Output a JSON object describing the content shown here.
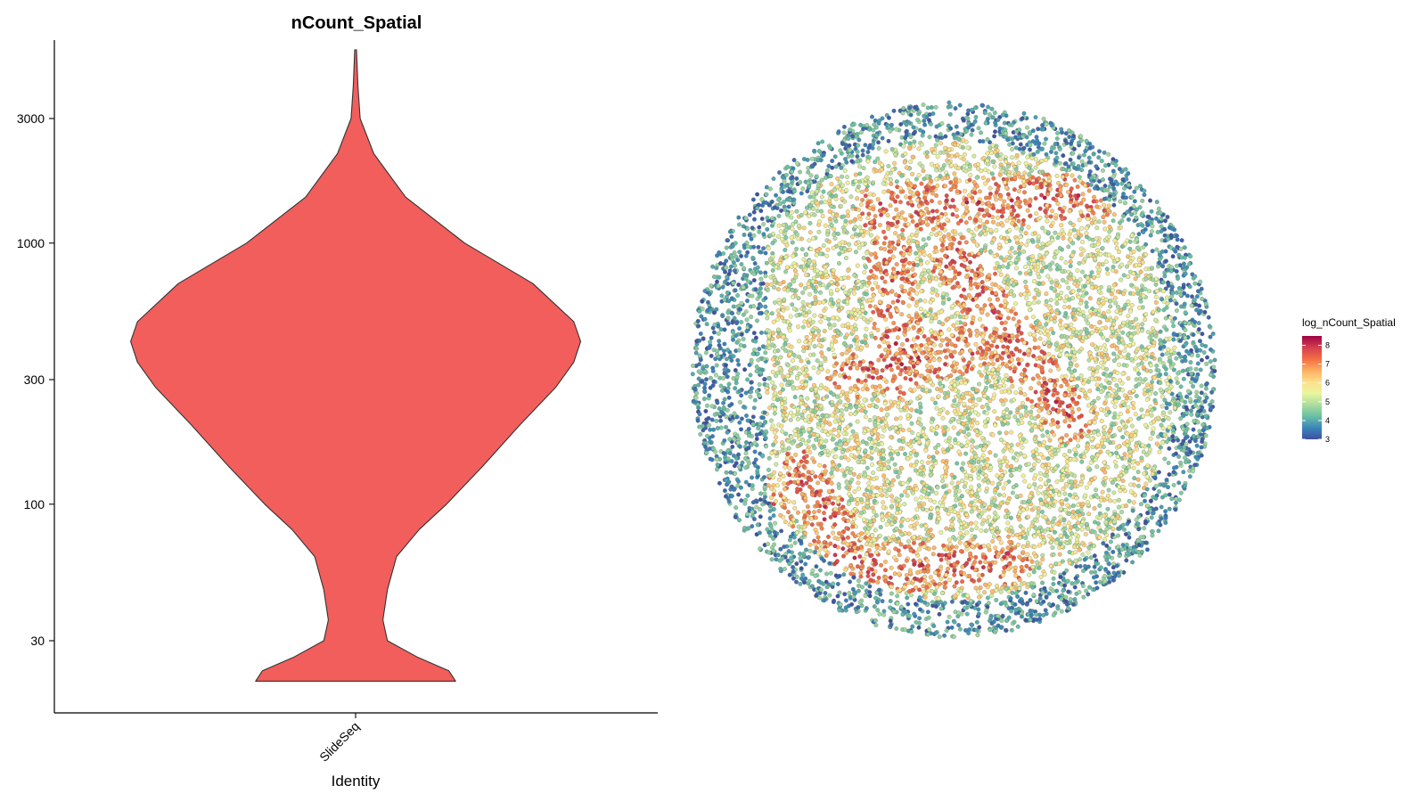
{
  "chart_data": [
    {
      "type": "violin",
      "title": "nCount_Spatial",
      "xlabel": "Identity",
      "ylabel": "",
      "y_scale": "log10",
      "categories": [
        "SlideSeq"
      ],
      "yticks": [
        30,
        100,
        300,
        1000,
        3000
      ],
      "ylim": [
        14,
        8000
      ],
      "fill_color": "#F15E5C",
      "series": [
        {
          "values": [
            "SlideSeq"
          ],
          "profile": [
            {
              "y": 21,
              "halfwidth": 0.44
            },
            {
              "y": 23,
              "halfwidth": 0.41
            },
            {
              "y": 26,
              "halfwidth": 0.27
            },
            {
              "y": 30,
              "halfwidth": 0.14
            },
            {
              "y": 36,
              "halfwidth": 0.12
            },
            {
              "y": 47,
              "halfwidth": 0.14
            },
            {
              "y": 63,
              "halfwidth": 0.18
            },
            {
              "y": 80,
              "halfwidth": 0.28
            },
            {
              "y": 100,
              "halfwidth": 0.4
            },
            {
              "y": 140,
              "halfwidth": 0.56
            },
            {
              "y": 200,
              "halfwidth": 0.72
            },
            {
              "y": 280,
              "halfwidth": 0.88
            },
            {
              "y": 350,
              "halfwidth": 0.96
            },
            {
              "y": 420,
              "halfwidth": 0.99
            },
            {
              "y": 500,
              "halfwidth": 0.96
            },
            {
              "y": 700,
              "halfwidth": 0.78
            },
            {
              "y": 1000,
              "halfwidth": 0.48
            },
            {
              "y": 1500,
              "halfwidth": 0.22
            },
            {
              "y": 2200,
              "halfwidth": 0.08
            },
            {
              "y": 3000,
              "halfwidth": 0.02
            },
            {
              "y": 4000,
              "halfwidth": 0.01
            },
            {
              "y": 5500,
              "halfwidth": 0.004
            }
          ]
        }
      ]
    },
    {
      "type": "scatter",
      "title": "",
      "xlabel": "",
      "ylabel": "",
      "colorbar": {
        "title": "log_nCount_Spatial",
        "range": [
          3,
          8.5
        ],
        "ticks": [
          3,
          4,
          5,
          6,
          7,
          8
        ],
        "colors": [
          "#3F4FA0",
          "#3A86BB",
          "#67C0A3",
          "#ADDC9F",
          "#E9F59E",
          "#FEE08B",
          "#FDAE61",
          "#F46D43",
          "#D53E4F",
          "#9E0142"
        ]
      },
      "layout_regions": [
        {
          "name": "outer-rim-low",
          "value_range": [
            3,
            4.5
          ]
        },
        {
          "name": "core-mixed",
          "value_range": [
            4.5,
            6.5
          ]
        },
        {
          "name": "high-bands",
          "value_range": [
            6.5,
            8.5
          ]
        }
      ]
    }
  ]
}
